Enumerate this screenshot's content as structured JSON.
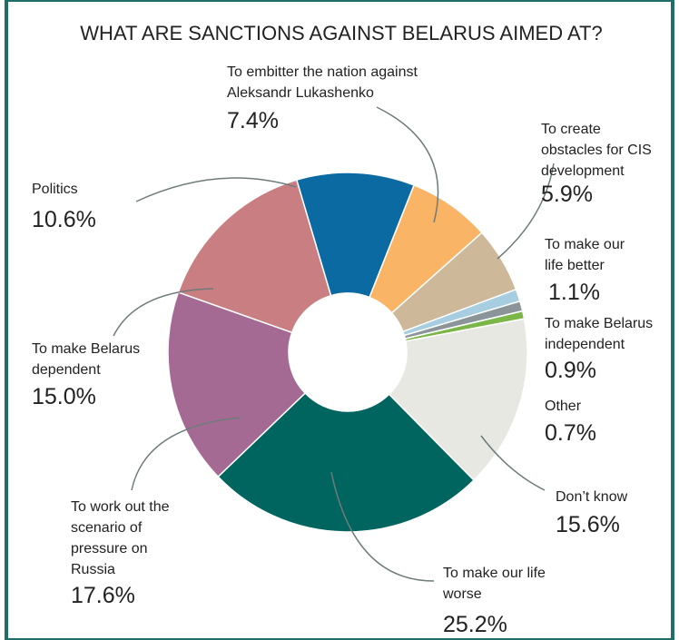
{
  "chart_data": {
    "type": "donut",
    "title": "WHAT ARE SANCTIONS AGAINST BELARUS AIMED AT?",
    "categories": [
      "Politics",
      "To embitter the nation against\nAleksandr Lukashenko",
      "To create\nobstacles for CIS\ndevelopment",
      "To make our\nlife better",
      "To make Belarus\nindependent",
      "Other",
      "Don’t know",
      "To make our life\nworse",
      "To work out the\nscenario of\npressure on\nRussia",
      "To make Belarus\ndependent"
    ],
    "values": [
      10.6,
      7.4,
      5.9,
      1.1,
      0.9,
      0.7,
      15.6,
      25.2,
      17.6,
      15.0
    ],
    "value_labels": [
      "10.6%",
      "7.4%",
      "5.9%",
      "1.1%",
      "0.9%",
      "0.7%",
      "15.6%",
      "25.2%",
      "17.6%",
      "15.0%"
    ],
    "colors": [
      "#0a6aa1",
      "#f9b565",
      "#cdb89a",
      "#a6cde0",
      "#8b9599",
      "#7ab648",
      "#e8e8e2",
      "#00655f",
      "#a56a94",
      "#c97f82"
    ]
  }
}
